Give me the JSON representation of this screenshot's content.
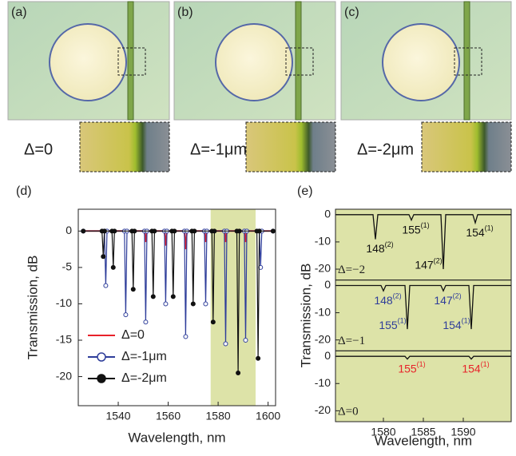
{
  "panels": [
    {
      "label": "(a)",
      "caption": "Δ=0"
    },
    {
      "label": "(b)",
      "caption": "Δ=-1μm"
    },
    {
      "label": "(c)",
      "caption": "Δ=-2μm"
    }
  ],
  "chart_data": [
    {
      "type": "line",
      "label": "(d)",
      "x_label": "Wavelength, nm",
      "y_label": "Transmission, dB",
      "xlim": [
        1524,
        1603
      ],
      "xticks": [
        1540,
        1560,
        1580,
        1600
      ],
      "ylim": [
        -24,
        3
      ],
      "yticks": [
        0,
        -5,
        -10,
        -15,
        -20
      ],
      "shade": [
        1577,
        1595
      ],
      "shade_color": "#dde3a8",
      "legend": "lower left",
      "series": [
        {
          "name": "Δ=0",
          "color": "#e8222a",
          "marker": null,
          "x": [
            1526,
            1550.5,
            1551,
            1551.5,
            1558.5,
            1559,
            1559.5,
            1566.5,
            1567,
            1567.5,
            1574.5,
            1575,
            1575.5,
            1582.5,
            1583,
            1583.5,
            1590.5,
            1591,
            1591.5,
            1602
          ],
          "values": [
            0,
            0,
            -1.5,
            0,
            0,
            -2,
            0,
            0,
            -2.5,
            0,
            0,
            -1.5,
            0,
            0,
            -1.5,
            0,
            0,
            -1.5,
            0,
            0
          ]
        },
        {
          "name": "Δ=-1μm",
          "color": "#2e3d9a",
          "marker": "open",
          "x": [
            1526,
            1534.5,
            1535,
            1535.5,
            1542.5,
            1543,
            1543.5,
            1550.5,
            1551,
            1551.5,
            1558.5,
            1559,
            1559.5,
            1566.5,
            1567,
            1567.5,
            1574.5,
            1575,
            1575.5,
            1582.5,
            1583,
            1583.5,
            1590.5,
            1591,
            1591.5,
            1596.5,
            1597,
            1597.5,
            1602
          ],
          "values": [
            0,
            0,
            -7.5,
            0,
            0,
            -11.5,
            0,
            0,
            -12.5,
            0,
            0,
            -10,
            0,
            0,
            -14.5,
            0,
            0,
            -10,
            0,
            0,
            -15.5,
            0,
            0,
            -15,
            0,
            0,
            -5,
            0,
            0
          ]
        },
        {
          "name": "Δ=-2μm",
          "color": "#111111",
          "marker": "filled",
          "x": [
            1526,
            1533.5,
            1534,
            1534.5,
            1537.5,
            1538,
            1538.5,
            1545.5,
            1546,
            1546.5,
            1553.5,
            1554,
            1554.5,
            1561.5,
            1562,
            1562.5,
            1569.5,
            1570,
            1570.5,
            1577.5,
            1578,
            1578.5,
            1587.5,
            1588,
            1588.5,
            1595.5,
            1596,
            1596.5,
            1602
          ],
          "values": [
            0,
            0,
            -3.5,
            0,
            0,
            -5,
            0,
            0,
            -8,
            0,
            0,
            -9,
            0,
            0,
            -9,
            0,
            0,
            -10,
            0,
            0,
            -12.5,
            0,
            0,
            -19.5,
            0,
            0,
            -17.5,
            0,
            0
          ]
        }
      ]
    },
    {
      "type": "stacked-lines",
      "label": "(e)",
      "x_label": "Wavelength, nm",
      "y_label": "Transmission, dB",
      "xlim": [
        1574,
        1596
      ],
      "xticks": [
        1580,
        1585,
        1590
      ],
      "ylim": [
        -24,
        2
      ],
      "yticks": [
        0,
        -10,
        -20
      ],
      "background": "#dde3a8",
      "subplots": [
        {
          "name": "Δ=−2",
          "color": "#111111",
          "label_color": "#111111",
          "x": [
            1574,
            1578.7,
            1579,
            1579.3,
            1583.2,
            1583.5,
            1583.8,
            1587.2,
            1587.5,
            1587.8,
            1591.2,
            1591.5,
            1591.8,
            1596
          ],
          "values": [
            0,
            0,
            -9,
            0,
            0,
            -2,
            0,
            0,
            -20,
            0,
            0,
            -3,
            0,
            0
          ],
          "point_labels": [
            null,
            null,
            "148",
            null,
            null,
            "155",
            null,
            null,
            "147",
            null,
            null,
            "154",
            null,
            null
          ],
          "point_sups": [
            null,
            null,
            "(2)",
            null,
            null,
            "(1)",
            null,
            null,
            "(2)",
            null,
            null,
            "(1)",
            null,
            null
          ]
        },
        {
          "name": "Δ=−1",
          "color": "#111111",
          "label_color": "#2e3d9a",
          "x": [
            1574,
            1579.7,
            1580,
            1580.3,
            1582.7,
            1583,
            1583.3,
            1587.2,
            1587.5,
            1587.8,
            1590.7,
            1591,
            1591.3,
            1596
          ],
          "values": [
            0,
            0,
            -2,
            0,
            0,
            -16,
            0,
            0,
            -2,
            0,
            0,
            -16,
            0,
            0
          ],
          "point_labels": [
            null,
            null,
            "148",
            null,
            null,
            "155",
            null,
            null,
            "147",
            null,
            null,
            "154",
            null,
            null
          ],
          "point_sups": [
            null,
            null,
            "(2)",
            null,
            null,
            "(1)",
            null,
            null,
            "(2)",
            null,
            null,
            "(1)",
            null,
            null
          ]
        },
        {
          "name": "Δ=0",
          "color": "#111111",
          "label_color": "#e8222a",
          "x": [
            1574,
            1582.7,
            1583,
            1583.3,
            1590.7,
            1591,
            1591.3,
            1596
          ],
          "values": [
            0,
            0,
            -1,
            0,
            0,
            -1,
            0,
            0
          ],
          "point_labels": [
            null,
            null,
            "155",
            null,
            null,
            "154",
            null,
            null
          ],
          "point_sups": [
            null,
            null,
            "(1)",
            null,
            null,
            "(1)",
            null,
            null
          ]
        }
      ]
    }
  ]
}
